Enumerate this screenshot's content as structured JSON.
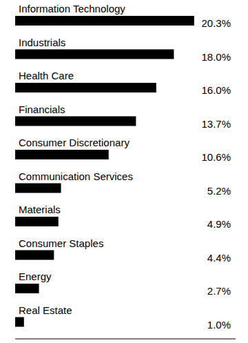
{
  "chart_data": {
    "type": "bar",
    "orientation": "horizontal",
    "categories": [
      "Information Technology",
      "Industrials",
      "Health Care",
      "Financials",
      "Consumer Discretionary",
      "Communication Services",
      "Materials",
      "Consumer Staples",
      "Energy",
      "Real Estate"
    ],
    "values": [
      20.3,
      18.0,
      16.0,
      13.7,
      10.6,
      5.2,
      4.9,
      4.4,
      2.7,
      1.0
    ],
    "value_labels": [
      "20.3%",
      "18.0%",
      "16.0%",
      "13.7%",
      "10.6%",
      "5.2%",
      "4.9%",
      "4.4%",
      "2.7%",
      "1.0%"
    ],
    "color": "#000000",
    "xlim": [
      0,
      25
    ],
    "data_labels": true,
    "tick_labels": false,
    "grid": false
  }
}
